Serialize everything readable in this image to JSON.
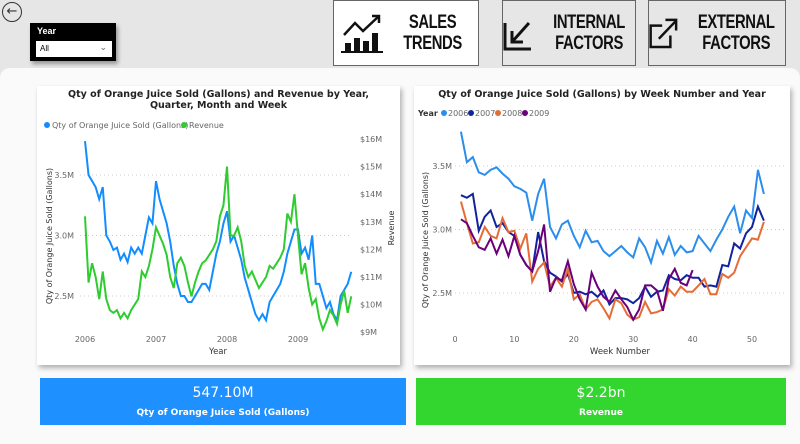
{
  "header": {
    "back_icon": "arrow-left-circle-icon",
    "slicer": {
      "label": "Year",
      "value": "All"
    },
    "nav": [
      {
        "label1": "SALES",
        "label2": "TRENDS",
        "icon": "chart-trend-icon",
        "active": true
      },
      {
        "label1": "INTERNAL",
        "label2": "FACTORS",
        "icon": "arrow-in-icon",
        "active": false
      },
      {
        "label1": "EXTERNAL",
        "label2": "FACTORS",
        "icon": "arrow-out-icon",
        "active": false
      }
    ]
  },
  "colors": {
    "blue": "#118DFF",
    "green": "#2ECC2E",
    "y2006": "#2B8EEB",
    "y2007": "#12239E",
    "y2008": "#E66C37",
    "y2009": "#6B007B"
  },
  "chart_data": [
    {
      "type": "line",
      "title": "Qty of Orange Juice Sold (Gallons) and Revenue by Year, Quarter, Month and Week",
      "xlabel": "Year",
      "ylabel": "Qty of Orange Juice Sold (Gallons)",
      "y2label": "Revenue",
      "xticks": [
        "2006",
        "2007",
        "2008",
        "2009"
      ],
      "yticks": [
        "2.5M",
        "3.0M",
        "3.5M"
      ],
      "y2ticks": [
        "$9M",
        "$10M",
        "$11M",
        "$12M",
        "$13M",
        "$14M",
        "$15M",
        "$16M"
      ],
      "legend": [
        "Qty of Orange Juice Sold (Gallons)",
        "Revenue"
      ],
      "x": [
        2006.0,
        2006.05,
        2006.1,
        2006.15,
        2006.2,
        2006.25,
        2006.3,
        2006.35,
        2006.4,
        2006.45,
        2006.5,
        2006.55,
        2006.6,
        2006.65,
        2006.7,
        2006.75,
        2006.8,
        2006.85,
        2006.9,
        2006.95,
        2007.0,
        2007.05,
        2007.1,
        2007.15,
        2007.2,
        2007.25,
        2007.3,
        2007.35,
        2007.4,
        2007.45,
        2007.5,
        2007.55,
        2007.6,
        2007.65,
        2007.7,
        2007.75,
        2007.8,
        2007.85,
        2007.9,
        2007.95,
        2008.0,
        2008.05,
        2008.1,
        2008.15,
        2008.2,
        2008.25,
        2008.3,
        2008.35,
        2008.4,
        2008.45,
        2008.5,
        2008.55,
        2008.6,
        2008.65,
        2008.7,
        2008.75,
        2008.8,
        2008.85,
        2008.9,
        2008.95,
        2009.0,
        2009.05,
        2009.1,
        2009.15,
        2009.2,
        2009.25,
        2009.3,
        2009.35,
        2009.4,
        2009.45,
        2009.5,
        2009.55,
        2009.6,
        2009.65,
        2009.7,
        2009.75
      ],
      "series": [
        {
          "name": "Qty of Orange Juice Sold (Gallons)",
          "unit": "M gallons",
          "values": [
            3.78,
            3.5,
            3.45,
            3.4,
            3.3,
            3.4,
            3.0,
            2.95,
            2.88,
            2.9,
            2.8,
            2.85,
            2.78,
            2.9,
            2.85,
            2.9,
            2.85,
            3.0,
            3.15,
            3.1,
            3.45,
            3.3,
            3.2,
            3.1,
            2.95,
            2.75,
            2.6,
            2.5,
            2.5,
            2.45,
            2.45,
            2.5,
            2.55,
            2.6,
            2.6,
            2.55,
            2.7,
            2.85,
            2.95,
            3.1,
            3.2,
            2.95,
            3.0,
            2.9,
            2.8,
            2.65,
            2.55,
            2.45,
            2.35,
            2.3,
            2.35,
            2.3,
            2.45,
            2.5,
            2.55,
            2.6,
            2.7,
            2.85,
            2.95,
            3.05,
            3.05,
            2.85,
            2.9,
            2.8,
            3.0,
            2.6,
            2.6,
            2.5,
            2.4,
            2.45,
            2.35,
            2.3,
            2.5,
            2.55,
            2.6,
            2.7
          ]
        },
        {
          "name": "Revenue",
          "unit": "$M",
          "values": [
            13.2,
            10.8,
            11.5,
            11.0,
            10.2,
            11.2,
            10.2,
            9.8,
            9.7,
            9.8,
            9.5,
            9.7,
            9.5,
            9.8,
            10.0,
            10.2,
            11.2,
            11.0,
            11.4,
            12.0,
            12.8,
            12.5,
            12.2,
            11.8,
            11.0,
            10.6,
            11.5,
            11.7,
            11.4,
            10.8,
            10.3,
            10.8,
            11.2,
            11.5,
            11.6,
            11.8,
            12.0,
            12.3,
            13.2,
            13.6,
            15.0,
            12.5,
            12.5,
            12.8,
            12.3,
            11.4,
            11.0,
            11.2,
            10.9,
            10.6,
            10.8,
            11.0,
            11.4,
            11.3,
            11.5,
            11.7,
            12.0,
            13.3,
            13.0,
            14.0,
            12.5,
            11.1,
            11.5,
            10.6,
            10.0,
            10.2,
            9.5,
            9.1,
            9.4,
            9.8,
            9.6,
            9.3,
            10.0,
            10.5,
            9.7,
            10.3
          ]
        }
      ]
    },
    {
      "type": "line",
      "title": "Qty of Orange Juice Sold (Gallons) by Week Number and Year",
      "xlabel": "Week Number",
      "ylabel": "Qty of Orange Juice Sold (Gallons)",
      "legend_title": "Year",
      "xticks": [
        "0",
        "10",
        "20",
        "30",
        "40",
        "50"
      ],
      "yticks": [
        "2.5M",
        "3.0M",
        "3.5M"
      ],
      "series": [
        {
          "name": "2006",
          "values": [
            3.77,
            3.53,
            3.57,
            3.45,
            3.43,
            3.47,
            3.49,
            3.44,
            3.4,
            3.34,
            3.32,
            3.29,
            3.07,
            3.28,
            3.4,
            3.02,
            2.93,
            3.04,
            3.07,
            2.95,
            2.86,
            2.99,
            2.9,
            2.91,
            2.83,
            2.79,
            2.83,
            2.87,
            2.82,
            2.78,
            2.93,
            2.86,
            2.74,
            2.91,
            2.81,
            2.94,
            2.8,
            2.87,
            2.82,
            2.83,
            2.95,
            2.89,
            2.83,
            2.92,
            3.0,
            3.1,
            3.18,
            2.97,
            3.15,
            3.09,
            3.47,
            3.28
          ]
        },
        {
          "name": "2007",
          "values": [
            3.27,
            3.25,
            3.28,
            2.99,
            3.1,
            3.15,
            3.02,
            3.05,
            2.98,
            2.95,
            2.8,
            2.72,
            2.67,
            2.98,
            2.75,
            2.66,
            2.63,
            2.59,
            2.65,
            2.5,
            2.51,
            2.49,
            2.51,
            2.47,
            2.52,
            2.41,
            2.46,
            2.46,
            2.45,
            2.42,
            2.46,
            2.55,
            2.47,
            2.51,
            2.52,
            2.64,
            2.61,
            2.6,
            2.64,
            2.62,
            2.62,
            2.55,
            2.56,
            2.55,
            2.72,
            2.71,
            2.89,
            2.85,
            2.97,
            3.02,
            3.18,
            3.07
          ]
        },
        {
          "name": "2008",
          "values": [
            3.22,
            3.05,
            2.89,
            2.9,
            3.02,
            2.95,
            2.93,
            3.09,
            2.98,
            2.99,
            2.85,
            2.97,
            2.59,
            2.69,
            2.74,
            2.55,
            2.62,
            2.55,
            2.69,
            2.45,
            2.49,
            2.37,
            2.43,
            2.45,
            2.38,
            2.3,
            2.45,
            2.42,
            2.33,
            2.29,
            2.31,
            2.43,
            2.34,
            2.35,
            2.37,
            2.53,
            2.48,
            2.55,
            2.51,
            2.51,
            2.56,
            2.61,
            2.49,
            2.49,
            2.65,
            2.62,
            2.66,
            2.79,
            2.86,
            2.93,
            2.92,
            3.06
          ]
        },
        {
          "name": "2009",
          "values": [
            3.08,
            3.05,
            2.95,
            2.86,
            2.84,
            2.93,
            2.81,
            2.92,
            2.79,
            2.95,
            2.8,
            2.72,
            2.67,
            2.83,
            3.04,
            2.51,
            2.62,
            2.6,
            2.75,
            2.57,
            2.45,
            2.37,
            2.66,
            2.55,
            2.47,
            2.43,
            2.52,
            2.45,
            2.39,
            2.29,
            2.37,
            2.56,
            2.56,
            2.52,
            2.36,
            2.61,
            2.69,
            2.58,
            2.56,
            2.68
          ]
        }
      ]
    }
  ],
  "kpis": [
    {
      "value": "547.10M",
      "label": "Qty of Orange Juice Sold (Gallons)"
    },
    {
      "value": "$2.2bn",
      "label": "Revenue"
    }
  ]
}
